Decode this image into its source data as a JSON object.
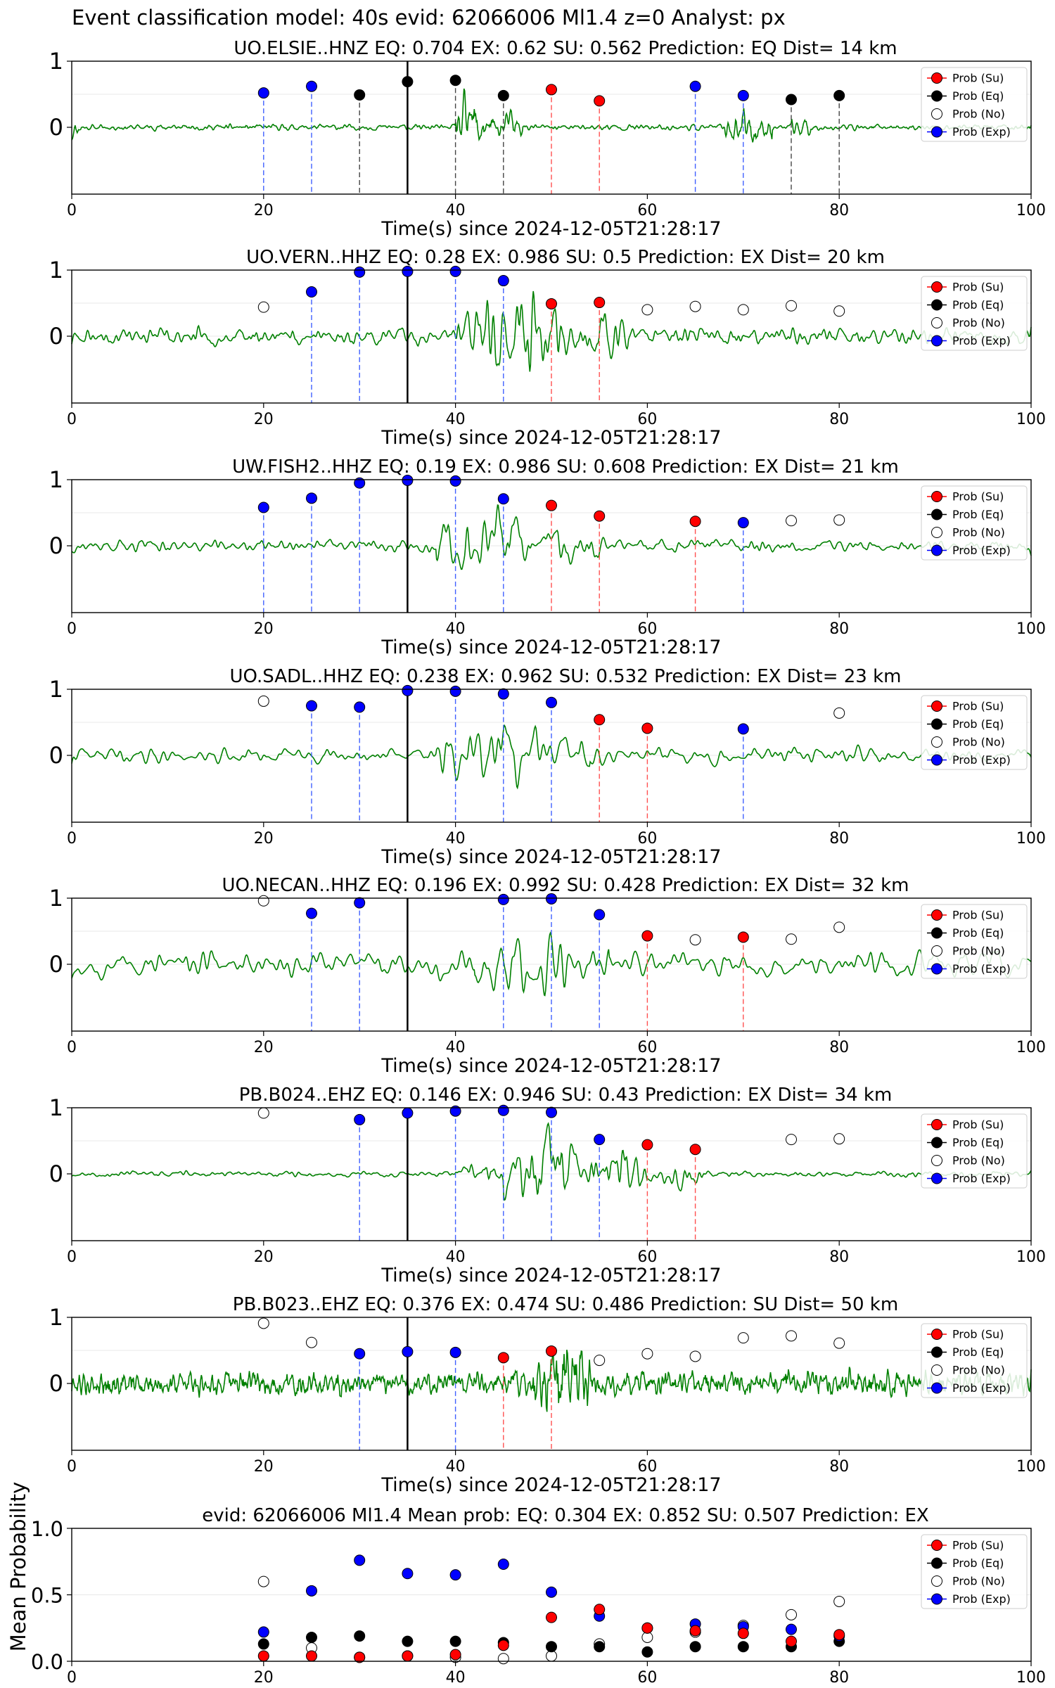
{
  "page_title": "Event classification model: 40s evid: 62066006 Ml1.4 z=0 Analyst: px",
  "chart_data": {
    "type": "scatter",
    "legend": [
      "Prob (Su)",
      "Prob (Eq)",
      "Prob (No)",
      "Prob (Exp)"
    ],
    "colors": {
      "su": "#ff0000",
      "eq": "#000000",
      "no": "#ffffff",
      "exp": "#0000ff",
      "trace": "#008000"
    },
    "xlim": [
      0,
      100
    ],
    "xticks": [
      "0",
      "20",
      "40",
      "60",
      "80",
      "100"
    ],
    "waveform_panels": [
      {
        "title": "UO.ELSIE..HNZ   EQ: 0.704  EX: 0.62  SU: 0.562   Prediction: EQ    Dist= 14 km",
        "xlabel": "Time(s) since 2024-12-05T21:28:17",
        "yticks": [
          "1",
          "0"
        ],
        "points": [
          [
            20,
            "exp",
            0.52
          ],
          [
            25,
            "exp",
            0.62
          ],
          [
            30,
            "eq",
            0.49
          ],
          [
            35,
            "eq",
            0.69
          ],
          [
            40,
            "eq",
            0.71
          ],
          [
            45,
            "eq",
            0.48
          ],
          [
            50,
            "su",
            0.57
          ],
          [
            55,
            "su",
            0.4
          ],
          [
            65,
            "exp",
            0.62
          ],
          [
            70,
            "exp",
            0.48
          ],
          [
            75,
            "eq",
            0.42
          ],
          [
            80,
            "eq",
            0.48
          ]
        ],
        "noise": {
          "seed": 11,
          "base": 0.06,
          "bursts": [
            [
              40,
              43,
              0.6
            ],
            [
              43,
              47,
              0.3
            ],
            [
              68,
              73,
              0.35
            ],
            [
              75,
              77,
              0.2
            ]
          ],
          "smooth": 2
        },
        "onset_amp": 0.25
      },
      {
        "title": "UO.VERN..HHZ   EQ: 0.28  EX: 0.986  SU: 0.5   Prediction: EX    Dist= 20 km",
        "xlabel": "Time(s) since 2024-12-05T21:28:17",
        "yticks": [
          "1",
          "0"
        ],
        "points": [
          [
            20,
            "no",
            0.44
          ],
          [
            25,
            "exp",
            0.67
          ],
          [
            30,
            "exp",
            0.97
          ],
          [
            35,
            "exp",
            0.98
          ],
          [
            40,
            "exp",
            0.98
          ],
          [
            45,
            "exp",
            0.84
          ],
          [
            50,
            "su",
            0.49
          ],
          [
            55,
            "su",
            0.51
          ],
          [
            60,
            "no",
            0.4
          ],
          [
            65,
            "no",
            0.45
          ],
          [
            70,
            "no",
            0.4
          ],
          [
            75,
            "no",
            0.46
          ],
          [
            80,
            "no",
            0.38
          ]
        ],
        "noise": {
          "seed": 23,
          "base": 0.16,
          "bursts": [
            [
              40,
              52,
              0.65
            ],
            [
              52,
              58,
              0.35
            ]
          ],
          "smooth": 4
        },
        "onset_amp": 0
      },
      {
        "title": "UW.FISH2..HHZ   EQ: 0.19  EX: 0.986  SU: 0.608   Prediction: EX    Dist= 21 km",
        "xlabel": "Time(s) since 2024-12-05T21:28:17",
        "yticks": [
          "1",
          "0"
        ],
        "points": [
          [
            20,
            "exp",
            0.58
          ],
          [
            25,
            "exp",
            0.72
          ],
          [
            30,
            "exp",
            0.95
          ],
          [
            35,
            "exp",
            0.99
          ],
          [
            40,
            "exp",
            0.98
          ],
          [
            45,
            "exp",
            0.71
          ],
          [
            50,
            "su",
            0.61
          ],
          [
            55,
            "su",
            0.45
          ],
          [
            65,
            "su",
            0.37
          ],
          [
            70,
            "exp",
            0.35
          ],
          [
            75,
            "no",
            0.38
          ],
          [
            80,
            "no",
            0.39
          ]
        ],
        "noise": {
          "seed": 37,
          "base": 0.15,
          "bursts": [
            [
              38,
              48,
              0.7
            ],
            [
              48,
              56,
              0.35
            ]
          ],
          "smooth": 5
        },
        "onset_amp": 0
      },
      {
        "title": "UO.SADL..HHZ   EQ: 0.238  EX: 0.962  SU: 0.532   Prediction: EX    Dist= 23 km",
        "xlabel": "Time(s) since 2024-12-05T21:28:17",
        "yticks": [
          "1",
          "0"
        ],
        "points": [
          [
            20,
            "no",
            0.82
          ],
          [
            25,
            "exp",
            0.75
          ],
          [
            30,
            "exp",
            0.73
          ],
          [
            35,
            "exp",
            0.98
          ],
          [
            40,
            "exp",
            0.97
          ],
          [
            45,
            "exp",
            0.93
          ],
          [
            50,
            "exp",
            0.8
          ],
          [
            55,
            "su",
            0.54
          ],
          [
            60,
            "su",
            0.41
          ],
          [
            70,
            "exp",
            0.4
          ],
          [
            80,
            "no",
            0.64
          ]
        ],
        "noise": {
          "seed": 41,
          "base": 0.17,
          "bursts": [
            [
              38,
              50,
              0.6
            ],
            [
              50,
              54,
              0.3
            ]
          ],
          "smooth": 8
        },
        "onset_amp": 0
      },
      {
        "title": "UO.NECAN..HHZ   EQ: 0.196  EX: 0.992  SU: 0.428   Prediction: EX    Dist= 32 km",
        "xlabel": "Time(s) since 2024-12-05T21:28:17",
        "yticks": [
          "1",
          "0"
        ],
        "points": [
          [
            20,
            "no",
            0.96
          ],
          [
            25,
            "exp",
            0.77
          ],
          [
            30,
            "exp",
            0.93
          ],
          [
            45,
            "exp",
            0.98
          ],
          [
            50,
            "exp",
            0.99
          ],
          [
            55,
            "exp",
            0.75
          ],
          [
            60,
            "su",
            0.43
          ],
          [
            65,
            "no",
            0.37
          ],
          [
            70,
            "su",
            0.41
          ],
          [
            75,
            "no",
            0.38
          ],
          [
            80,
            "no",
            0.56
          ]
        ],
        "noise": {
          "seed": 53,
          "base": 0.25,
          "bursts": [
            [
              42,
              56,
              0.55
            ]
          ],
          "smooth": 9
        },
        "onset_amp": 0
      },
      {
        "title": "PB.B024..EHZ   EQ: 0.146  EX: 0.946  SU: 0.43   Prediction: EX    Dist= 34 km",
        "xlabel": "Time(s) since 2024-12-05T21:28:17",
        "yticks": [
          "1",
          "0"
        ],
        "points": [
          [
            20,
            "no",
            0.92
          ],
          [
            30,
            "exp",
            0.82
          ],
          [
            35,
            "exp",
            0.92
          ],
          [
            40,
            "exp",
            0.95
          ],
          [
            45,
            "exp",
            0.96
          ],
          [
            50,
            "exp",
            0.93
          ],
          [
            55,
            "exp",
            0.52
          ],
          [
            60,
            "su",
            0.44
          ],
          [
            65,
            "su",
            0.37
          ],
          [
            75,
            "no",
            0.52
          ],
          [
            80,
            "no",
            0.53
          ]
        ],
        "noise": {
          "seed": 67,
          "base": 0.06,
          "bursts": [
            [
              40,
              45,
              0.25
            ],
            [
              45,
              53,
              0.85
            ],
            [
              53,
              60,
              0.4
            ],
            [
              60,
              66,
              0.2
            ]
          ],
          "smooth": 4
        },
        "onset_amp": 0
      },
      {
        "title": "PB.B023..EHZ   EQ: 0.376  EX: 0.474  SU: 0.486   Prediction: SU    Dist= 50 km",
        "xlabel": "Time(s) since 2024-12-05T21:28:17",
        "yticks": [
          "1",
          "0"
        ],
        "points": [
          [
            20,
            "no",
            0.91
          ],
          [
            25,
            "no",
            0.62
          ],
          [
            30,
            "exp",
            0.45
          ],
          [
            35,
            "exp",
            0.48
          ],
          [
            40,
            "exp",
            0.47
          ],
          [
            45,
            "su",
            0.39
          ],
          [
            50,
            "su",
            0.49
          ],
          [
            55,
            "no",
            0.35
          ],
          [
            60,
            "no",
            0.45
          ],
          [
            65,
            "no",
            0.41
          ],
          [
            70,
            "no",
            0.69
          ],
          [
            75,
            "no",
            0.72
          ],
          [
            80,
            "no",
            0.61
          ]
        ],
        "noise": {
          "seed": 79,
          "base": 0.25,
          "bursts": [
            [
              48,
              54,
              0.45
            ]
          ],
          "smooth": 1
        },
        "onset_amp": 0
      }
    ],
    "summary_panel": {
      "title": "evid: 62066006  Ml1.4   Mean prob:   EQ: 0.304  EX: 0.852  SU: 0.507   Prediction: EX",
      "ylabel": "Mean Probability",
      "ylim": [
        0,
        1
      ],
      "yticks": [
        "1.0",
        "0.5",
        "0.0"
      ],
      "x": [
        20,
        25,
        30,
        35,
        40,
        45,
        50,
        55,
        60,
        65,
        70,
        75,
        80
      ],
      "series": [
        {
          "key": "no",
          "name": "Prob (No)",
          "values": [
            0.6,
            0.1,
            0.03,
            0.04,
            0.03,
            0.02,
            0.04,
            0.13,
            0.18,
            0.22,
            0.27,
            0.35,
            0.45
          ]
        },
        {
          "key": "eq",
          "name": "Prob (Eq)",
          "values": [
            0.13,
            0.18,
            0.19,
            0.15,
            0.15,
            0.14,
            0.11,
            0.11,
            0.07,
            0.11,
            0.11,
            0.11,
            0.15
          ]
        },
        {
          "key": "exp",
          "name": "Prob (Exp)",
          "values": [
            0.22,
            0.53,
            0.76,
            0.66,
            0.65,
            0.73,
            0.52,
            0.34,
            0.25,
            0.28,
            0.26,
            0.24,
            0.19
          ]
        },
        {
          "key": "su",
          "name": "Prob (Su)",
          "values": [
            0.04,
            0.04,
            0.03,
            0.04,
            0.05,
            0.12,
            0.33,
            0.39,
            0.25,
            0.23,
            0.21,
            0.15,
            0.2
          ]
        }
      ]
    }
  }
}
